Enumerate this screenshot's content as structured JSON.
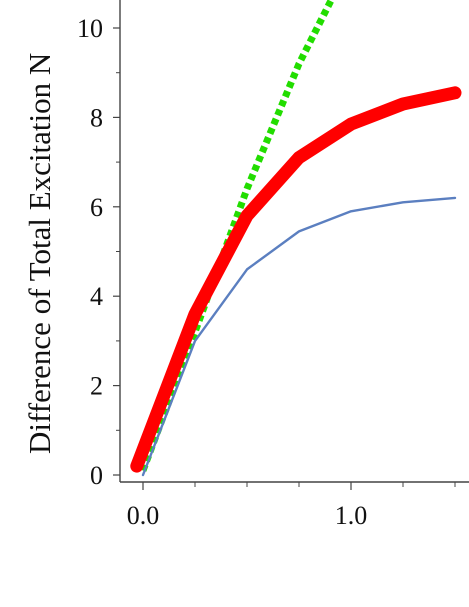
{
  "chart_data": {
    "type": "line",
    "title": "",
    "ylabel": "Difference of  Total Excitation N",
    "xlabel": "",
    "xlim": [
      -0.1,
      1.55
    ],
    "ylim": [
      0,
      10.7
    ],
    "x_ticks": [
      {
        "value": 0.0,
        "label": "0.0"
      },
      {
        "value": 1.0,
        "label": "1.0"
      }
    ],
    "x_minor_ticks": [
      0.25,
      0.5,
      0.75,
      1.25,
      1.5
    ],
    "y_ticks": [
      {
        "value": 0,
        "label": "0"
      },
      {
        "value": 2,
        "label": "2"
      },
      {
        "value": 4,
        "label": "4"
      },
      {
        "value": 6,
        "label": "6"
      },
      {
        "value": 8,
        "label": "8"
      },
      {
        "value": 10,
        "label": "10"
      }
    ],
    "y_minor_ticks": [
      1,
      3,
      5,
      7,
      9
    ],
    "grid": false,
    "legend": "none",
    "series": [
      {
        "style": "dotted",
        "color": "#22dd00",
        "x": [
          0.0,
          0.25,
          0.5,
          0.75,
          1.0
        ],
        "y": [
          0.1,
          3.2,
          6.4,
          9.2,
          11.5
        ]
      },
      {
        "style": "thick",
        "color": "#ff0000",
        "x": [
          -0.03,
          0.25,
          0.5,
          0.75,
          1.0,
          1.25,
          1.5
        ],
        "y": [
          0.2,
          3.6,
          5.8,
          7.1,
          7.85,
          8.3,
          8.55
        ]
      },
      {
        "style": "thin",
        "color": "#5b7fc0",
        "x": [
          0.0,
          0.25,
          0.5,
          0.75,
          1.0,
          1.25,
          1.5
        ],
        "y": [
          0.0,
          3.0,
          4.6,
          5.45,
          5.9,
          6.1,
          6.2
        ]
      }
    ]
  }
}
